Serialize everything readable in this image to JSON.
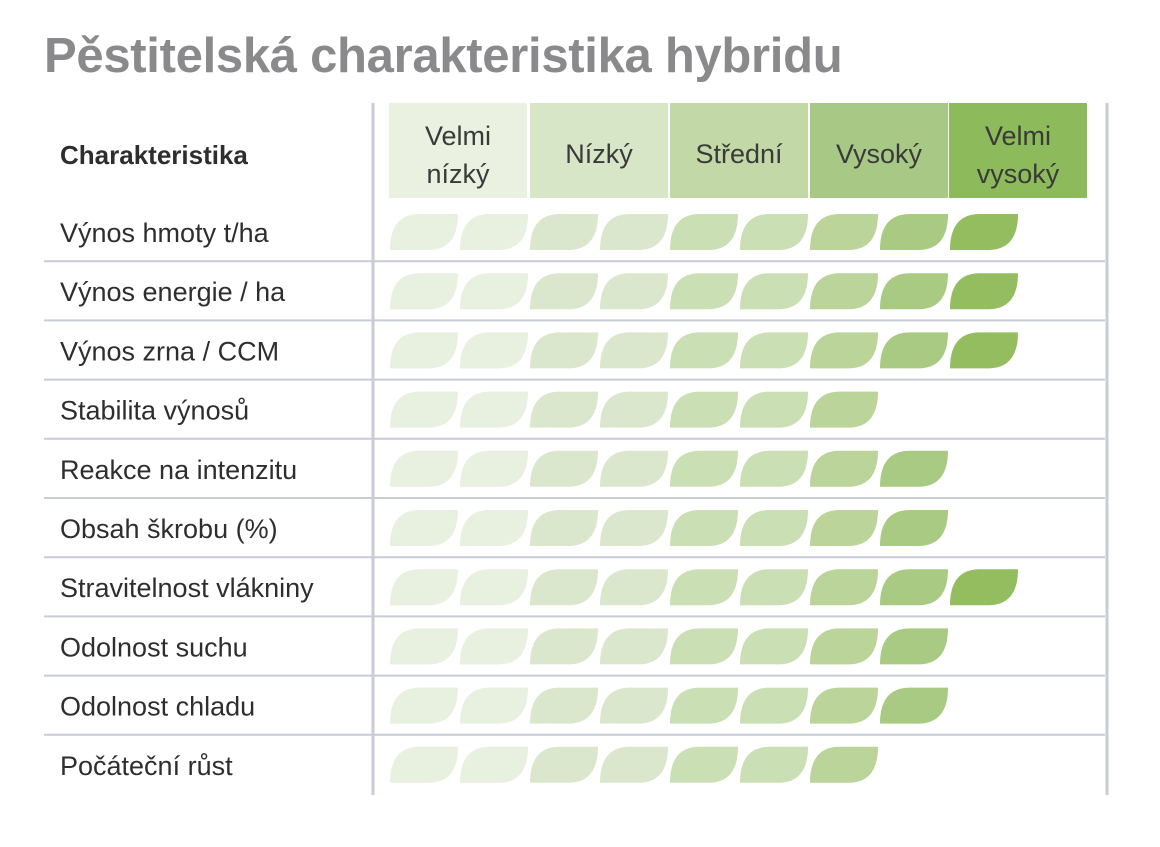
{
  "title": "Pěstitelská charakteristika hybridu",
  "colors": {
    "leaf_scale": [
      "#e8f0df",
      "#dbe7cd",
      "#cbdfb4",
      "#bad49a",
      "#a9ca82",
      "#94bd60"
    ],
    "header_scale": [
      "#eaf1e0",
      "#d8e6c8",
      "#c2d9a7",
      "#a8c985",
      "#8dba5a"
    ],
    "header_text_last": "#3a3a3a",
    "grid": "#c9cbd6",
    "title": "#8a8a8c"
  },
  "chart_data": {
    "type": "table",
    "column_title": "Charakteristika",
    "scale_levels": [
      {
        "lines": [
          "Velmi",
          "nízký"
        ]
      },
      {
        "lines": [
          "Nízký"
        ]
      },
      {
        "lines": [
          "Střední"
        ]
      },
      {
        "lines": [
          "Vysoký"
        ]
      },
      {
        "lines": [
          "Velmi",
          "vysoký"
        ]
      }
    ],
    "max_leaves": 9,
    "rows": [
      {
        "label": "Výnos hmoty t/ha",
        "value": 9
      },
      {
        "label": "Výnos energie / ha",
        "value": 9
      },
      {
        "label": "Výnos zrna / CCM",
        "value": 9
      },
      {
        "label": "Stabilita výnosů",
        "value": 7
      },
      {
        "label": "Reakce na intenzitu",
        "value": 8
      },
      {
        "label": "Obsah škrobu (%)",
        "value": 8
      },
      {
        "label": "Stravitelnost vlákniny",
        "value": 9
      },
      {
        "label": "Odolnost suchu",
        "value": 8
      },
      {
        "label": "Odolnost chladu",
        "value": 8
      },
      {
        "label": "Počáteční růst",
        "value": 7
      }
    ]
  }
}
